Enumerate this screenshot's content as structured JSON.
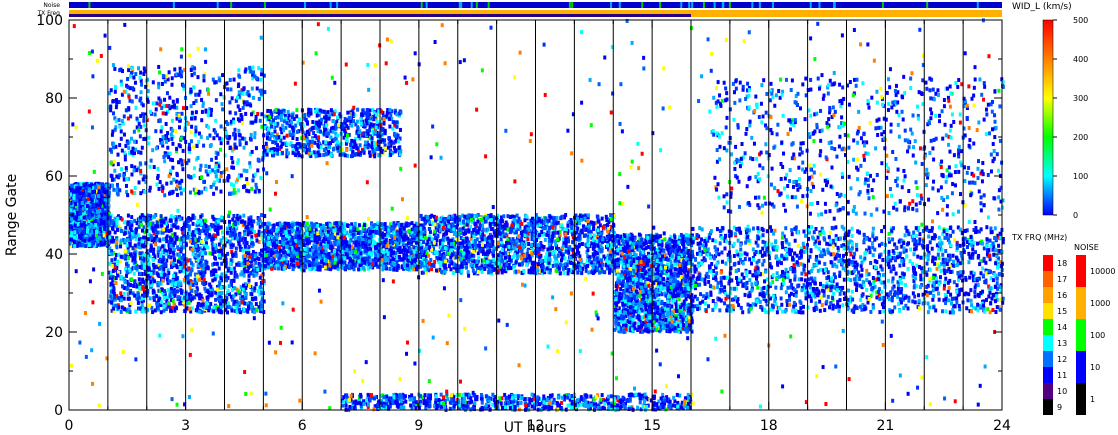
{
  "chart_data": {
    "type": "heatmap",
    "xlabel": "UT hours",
    "ylabel": "Range Gate",
    "xlim": [
      0,
      24
    ],
    "ylim": [
      0,
      100
    ],
    "x_ticks": [
      "0",
      "3",
      "6",
      "9",
      "12",
      "15",
      "18",
      "21",
      "24"
    ],
    "y_ticks": [
      "0",
      "20",
      "40",
      "60",
      "80",
      "100"
    ],
    "hour_dividers": [
      1,
      2,
      3,
      4,
      5,
      6,
      7,
      8,
      9,
      10,
      11,
      12,
      13,
      14,
      15,
      16,
      17,
      18,
      19,
      20,
      21,
      22,
      23
    ],
    "top_strips": {
      "noise_label": "Noise",
      "txfreq_label": "TX Freq",
      "txfreq_change_hour": 16
    },
    "scatter_bands": [
      {
        "x_start": 0.0,
        "x_end": 1.0,
        "y_low": 42,
        "y_high": 58,
        "density": "high"
      },
      {
        "x_start": 1.0,
        "x_end": 5.0,
        "y_low": 25,
        "y_high": 50,
        "density": "high"
      },
      {
        "x_start": 1.0,
        "x_end": 5.0,
        "y_low": 55,
        "y_high": 88,
        "density": "medium"
      },
      {
        "x_start": 5.0,
        "x_end": 9.0,
        "y_low": 36,
        "y_high": 48,
        "density": "high"
      },
      {
        "x_start": 5.0,
        "x_end": 8.5,
        "y_low": 65,
        "y_high": 77,
        "density": "medium"
      },
      {
        "x_start": 9.0,
        "x_end": 14.0,
        "y_low": 35,
        "y_high": 50,
        "density": "high"
      },
      {
        "x_start": 14.0,
        "x_end": 16.0,
        "y_low": 20,
        "y_high": 45,
        "density": "high"
      },
      {
        "x_start": 16.0,
        "x_end": 24.0,
        "y_low": 25,
        "y_high": 47,
        "density": "high"
      },
      {
        "x_start": 16.5,
        "x_end": 24.0,
        "y_low": 50,
        "y_high": 85,
        "density": "medium"
      },
      {
        "x_start": 7.0,
        "x_end": 16.0,
        "y_low": 0,
        "y_high": 4,
        "density": "medium"
      }
    ],
    "colorbars": {
      "width": {
        "title": "WID_L (km/s)",
        "ticks": [
          "500",
          "400",
          "300",
          "200",
          "100",
          "0"
        ],
        "gradient": [
          "#ff0000",
          "#ff8000",
          "#ffff00",
          "#00ff00",
          "#00ffff",
          "#0000ff"
        ]
      },
      "txfreq": {
        "title": "TX FRQ (MHz)",
        "ticks": [
          "18",
          "17",
          "16",
          "15",
          "14",
          "13",
          "12",
          "11",
          "10",
          "9"
        ],
        "colors": [
          "#ff0000",
          "#ff6000",
          "#ffa000",
          "#ffe000",
          "#00ff00",
          "#00ffff",
          "#0070ff",
          "#0000ff",
          "#500080",
          "#000000"
        ]
      },
      "noise": {
        "title": "NOISE",
        "ticks": [
          "10000",
          "1000",
          "100",
          "10",
          "1"
        ],
        "colors": [
          "#ff0000",
          "#ffb000",
          "#00ff00",
          "#0000ff",
          "#000000"
        ]
      }
    },
    "grid": false,
    "legend": "right"
  }
}
